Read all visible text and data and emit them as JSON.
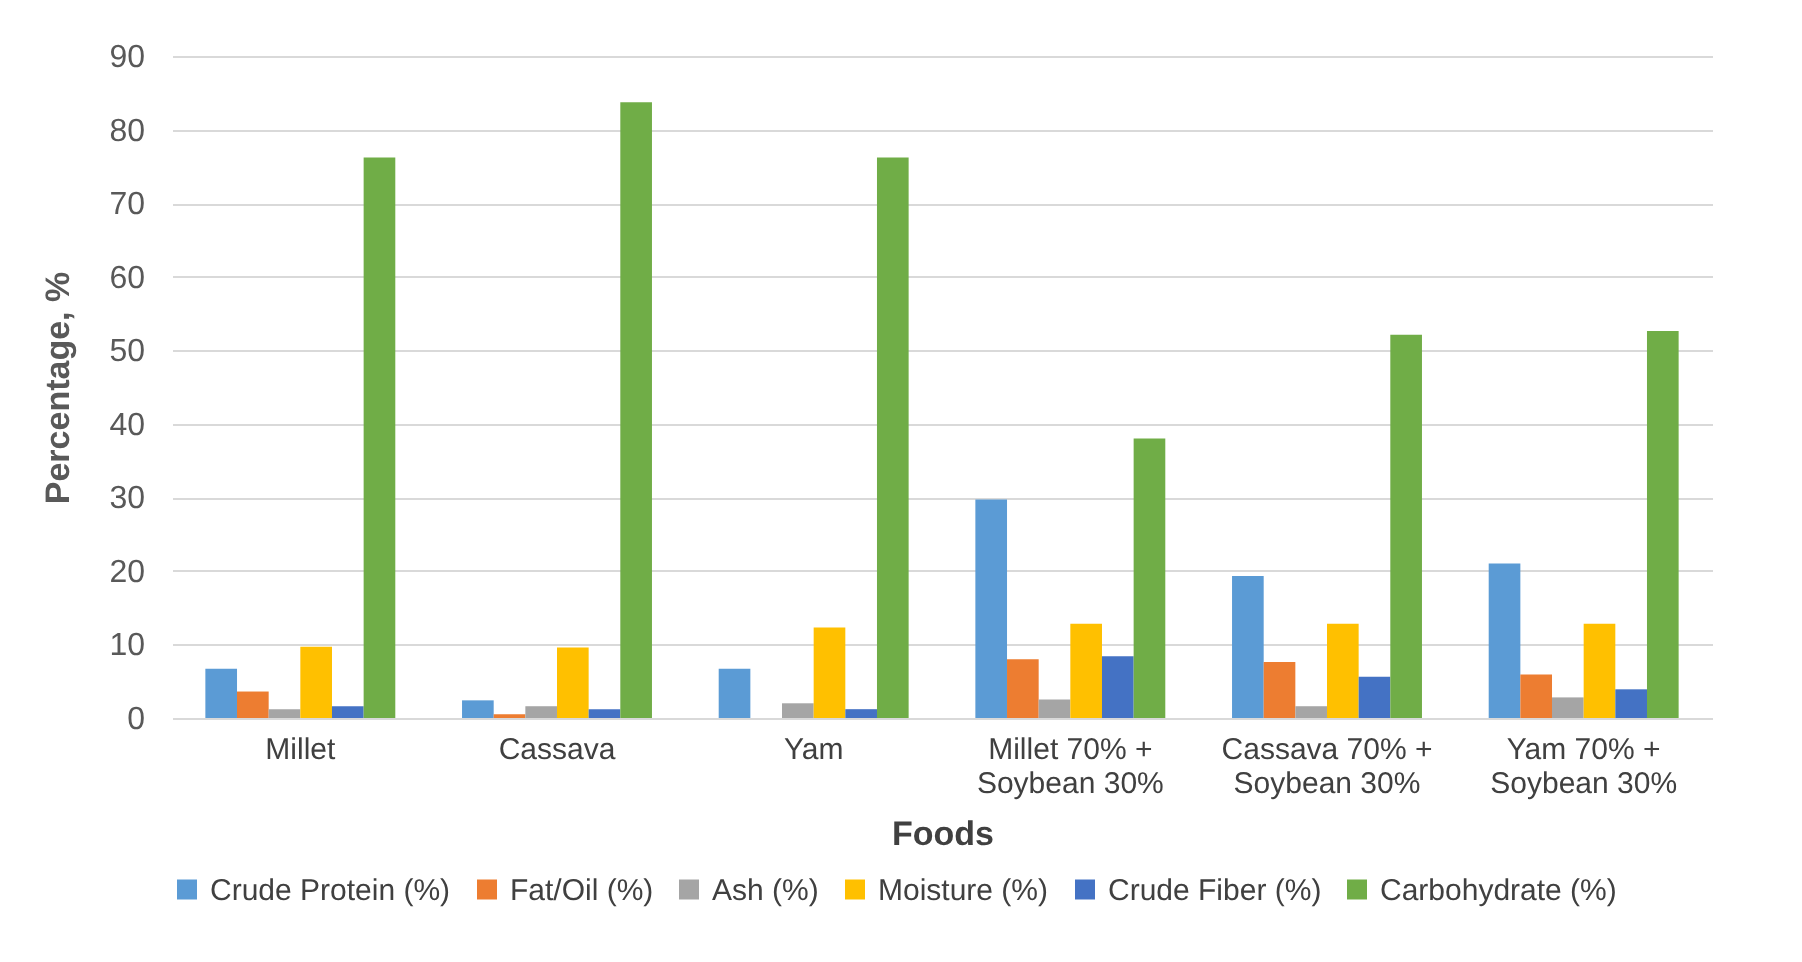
{
  "chart_data": {
    "type": "bar",
    "xlabel": "Foods",
    "ylabel": "Percentage, %",
    "categories": [
      "Millet",
      "Cassava",
      "Yam",
      "Millet 70% +\nSoybean 30%",
      "Cassava 70% +\nSoybean 30%",
      "Yam 70% +\nSoybean 30%"
    ],
    "series": [
      {
        "name": "Crude Protein (%)",
        "color": "#5b9bd5",
        "values": [
          6.7,
          2.4,
          6.7,
          29.7,
          19.3,
          21.0
        ]
      },
      {
        "name": "Fat/Oil (%)",
        "color": "#ed7d31",
        "values": [
          3.6,
          0.5,
          0,
          8.0,
          7.6,
          5.9
        ]
      },
      {
        "name": "Ash (%)",
        "color": "#a5a5a5",
        "values": [
          1.2,
          1.6,
          2.0,
          2.5,
          1.6,
          2.8
        ]
      },
      {
        "name": "Moisture (%)",
        "color": "#ffc000",
        "values": [
          9.7,
          9.6,
          12.3,
          12.8,
          12.8,
          12.8
        ]
      },
      {
        "name": "Crude Fiber (%)",
        "color": "#4472c4",
        "values": [
          1.6,
          1.2,
          1.2,
          8.4,
          5.6,
          3.9
        ]
      },
      {
        "name": "Carbohydrate (%)",
        "color": "#70ad47",
        "values": [
          76.2,
          83.7,
          76.2,
          38.0,
          52.1,
          52.6
        ]
      }
    ],
    "ylim": [
      0,
      90
    ],
    "yticks": [
      0,
      10,
      20,
      30,
      40,
      50,
      60,
      70,
      80,
      90
    ],
    "grid": "y",
    "legend": "bottom"
  }
}
